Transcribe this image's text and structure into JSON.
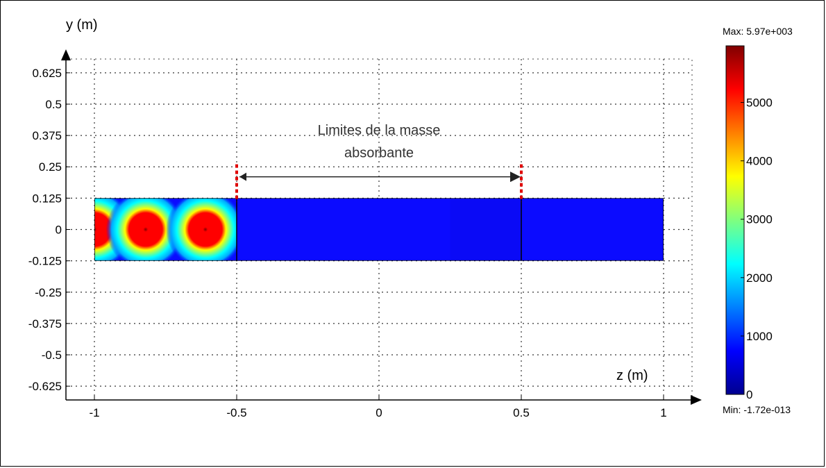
{
  "chart_data": {
    "type": "heatmap",
    "xlabel": "z (m)",
    "ylabel": "y (m)",
    "xlim": [
      -1.1,
      1.1
    ],
    "ylim": [
      -0.68,
      0.68
    ],
    "xticks": [
      {
        "v": -1,
        "t": "-1"
      },
      {
        "v": -0.5,
        "t": "-0.5"
      },
      {
        "v": 0,
        "t": "0"
      },
      {
        "v": 0.5,
        "t": "0.5"
      },
      {
        "v": 1,
        "t": "1"
      }
    ],
    "yticks": [
      {
        "v": 0.625,
        "t": "0.625"
      },
      {
        "v": 0.5,
        "t": "0.5"
      },
      {
        "v": 0.375,
        "t": "0.375"
      },
      {
        "v": 0.25,
        "t": "0.25"
      },
      {
        "v": 0.125,
        "t": "0.125"
      },
      {
        "v": 0,
        "t": "0"
      },
      {
        "v": -0.125,
        "t": "-0.125"
      },
      {
        "v": -0.25,
        "t": "-0.25"
      },
      {
        "v": -0.375,
        "t": "-0.375"
      },
      {
        "v": -0.5,
        "t": "-0.5"
      },
      {
        "v": -0.625,
        "t": "-0.625"
      }
    ],
    "grid": true,
    "domain": {
      "z": [
        -1,
        1
      ],
      "y": [
        -0.125,
        0.125
      ]
    },
    "subdomain_boundaries_z": [
      -0.5,
      0.5
    ],
    "hotspots": [
      {
        "z": -1.0,
        "y": 0,
        "peak": 5970
      },
      {
        "z": -0.82,
        "y": 0,
        "peak": 5970
      },
      {
        "z": -0.61,
        "y": 0,
        "peak": 5970
      }
    ],
    "background_value": 800,
    "annotation": {
      "line1": "Limites de la masse",
      "line2": "absorbante",
      "z_start": -0.5,
      "z_end": 0.5
    },
    "colorbar": {
      "max_label": "Max: 5.97e+003",
      "min_label": "Min: -1.72e-013",
      "range": [
        0,
        5970
      ],
      "ticks": [
        {
          "v": 0,
          "t": "0"
        },
        {
          "v": 1000,
          "t": "1000"
        },
        {
          "v": 2000,
          "t": "2000"
        },
        {
          "v": 3000,
          "t": "3000"
        },
        {
          "v": 4000,
          "t": "4000"
        },
        {
          "v": 5000,
          "t": "5000"
        }
      ],
      "colors": [
        "#00008f",
        "#0000ff",
        "#00ffff",
        "#ffff00",
        "#ff0000",
        "#800000"
      ]
    }
  }
}
